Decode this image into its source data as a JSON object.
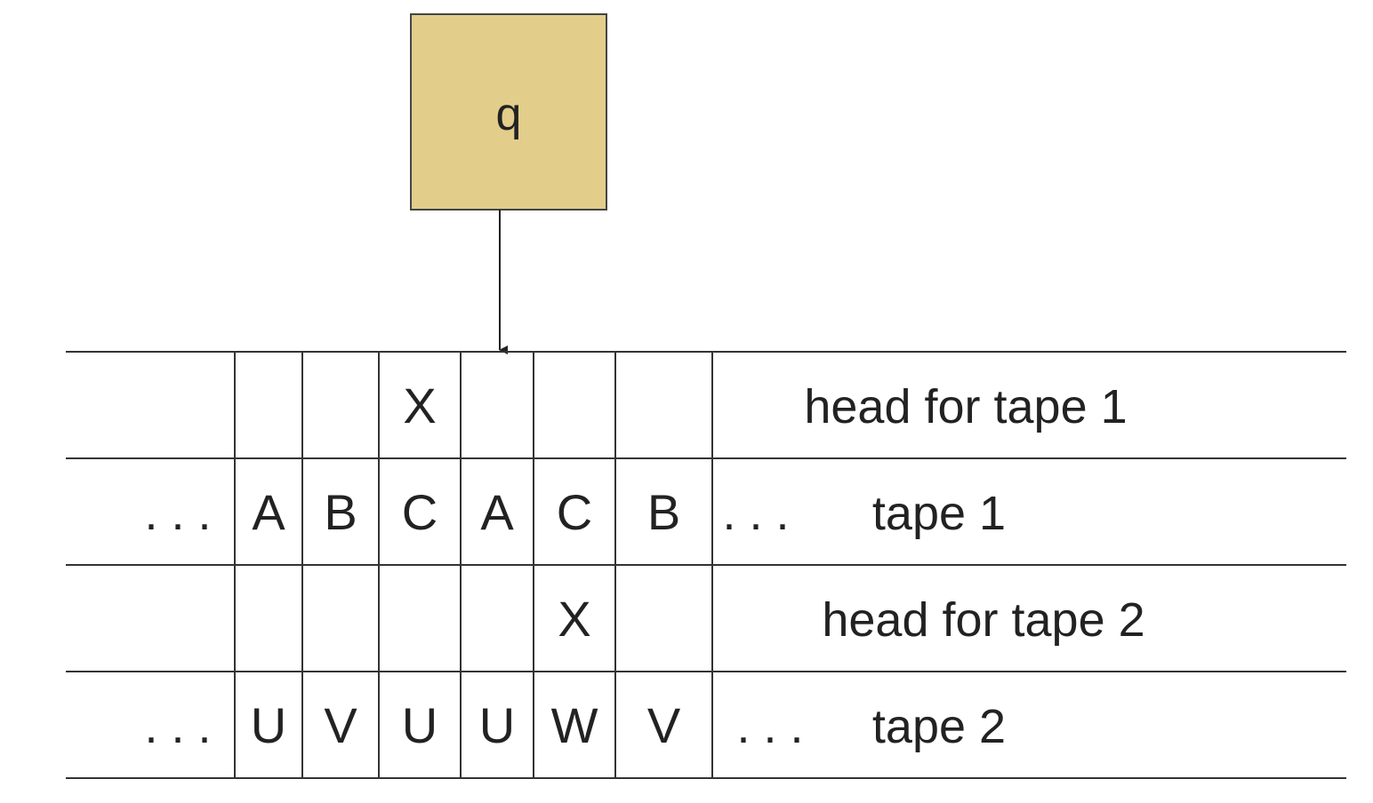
{
  "state": {
    "label": "q",
    "fill": "#e2cd8a"
  },
  "rows": [
    {
      "name": "head-row-tape-1",
      "left": "",
      "cells": [
        "",
        "",
        "X",
        "",
        "",
        ""
      ],
      "right": "",
      "label": "head for tape 1"
    },
    {
      "name": "tape-row-1",
      "left": ". . .",
      "cells": [
        "A",
        "B",
        "C",
        "A",
        "C",
        "B"
      ],
      "right": ". . .",
      "label": "tape 1"
    },
    {
      "name": "head-row-tape-2",
      "left": "",
      "cells": [
        "",
        "",
        "",
        "",
        "X",
        ""
      ],
      "right": "",
      "label": "head for tape 2"
    },
    {
      "name": "tape-row-2",
      "left": ". . .",
      "cells": [
        "U",
        "V",
        "U",
        "U",
        "W",
        "V"
      ],
      "right": ". . .",
      "label": "tape 2"
    }
  ],
  "colors": {
    "line": "#333333",
    "text": "#222222"
  }
}
